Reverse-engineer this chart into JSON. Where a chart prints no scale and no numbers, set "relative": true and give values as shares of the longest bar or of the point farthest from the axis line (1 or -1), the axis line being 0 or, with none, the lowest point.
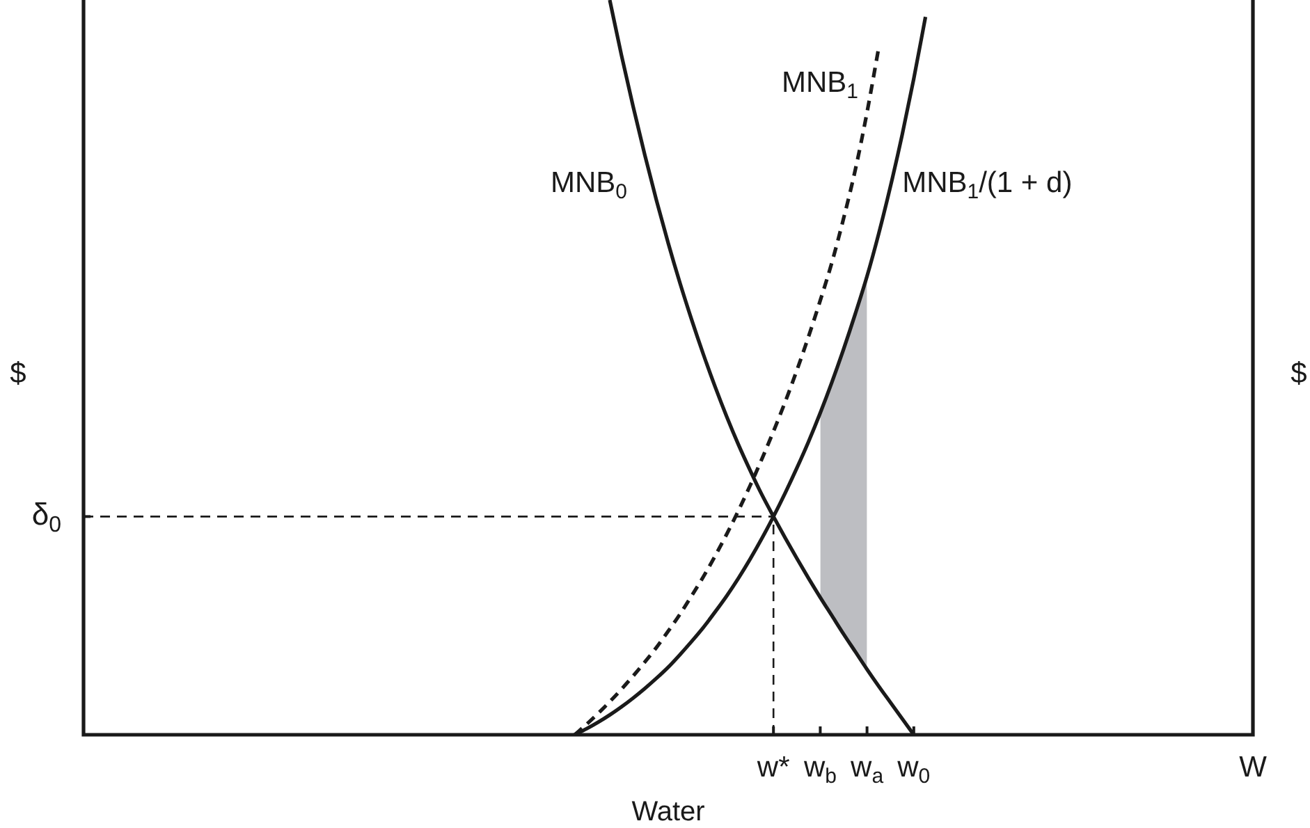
{
  "chart_data": {
    "type": "line",
    "relative": true,
    "xlabel": "Water",
    "ylabel": "$",
    "y2label": "$",
    "legend": false,
    "marker": "none",
    "categories": [
      null,
      null,
      null,
      null,
      null,
      null,
      null,
      null,
      null,
      null,
      null,
      null,
      null,
      null,
      null,
      null,
      null,
      null,
      null,
      null,
      null,
      null,
      null,
      null,
      null,
      null,
      null,
      null,
      null,
      null,
      null,
      null,
      null,
      null,
      null,
      null,
      null,
      null,
      null,
      null,
      null,
      null,
      null,
      null,
      null,
      null,
      null,
      null,
      null,
      null,
      null,
      null,
      null,
      null,
      null,
      null,
      null,
      null,
      null,
      "w*",
      null,
      null,
      null,
      "w$_{b}$",
      null,
      null,
      null,
      "w$_{a}$",
      null,
      null,
      null,
      "w$_{0}$",
      null,
      null,
      null,
      null,
      null,
      null,
      null,
      null,
      null,
      null,
      null,
      null,
      null,
      null,
      null,
      null,
      null,
      null,
      null,
      null,
      null,
      null,
      null,
      null,
      null,
      null,
      null,
      null,
      "W"
    ],
    "series": [
      {
        "type": "area",
        "color": "#bdbec2",
        "values": [
          null,
          null,
          null,
          null,
          null,
          null,
          null,
          null,
          null,
          null,
          null,
          null,
          null,
          null,
          null,
          null,
          null,
          null,
          null,
          null,
          null,
          null,
          null,
          null,
          null,
          null,
          null,
          null,
          null,
          null,
          null,
          null,
          null,
          null,
          null,
          null,
          null,
          null,
          null,
          null,
          null,
          null,
          null,
          null,
          null,
          null,
          null,
          null,
          null,
          null,
          null,
          null,
          null,
          null,
          null,
          null,
          null,
          null,
          null,
          null,
          null,
          null,
          null,
          0.438,
          0.48,
          0.525,
          0.573,
          0.624,
          null,
          null,
          null,
          null,
          null,
          null,
          null,
          null,
          null,
          null,
          null,
          null,
          null,
          null,
          null,
          null,
          null,
          null,
          null,
          null,
          null,
          null,
          null,
          null,
          null,
          null,
          null,
          null,
          null,
          null,
          null,
          null,
          null
        ]
      },
      {
        "name": "MNB$_{0}$",
        "color": "#1a1a1a",
        "values": [
          null,
          null,
          null,
          null,
          null,
          null,
          null,
          null,
          null,
          null,
          null,
          null,
          null,
          null,
          null,
          null,
          null,
          null,
          null,
          null,
          null,
          null,
          null,
          null,
          null,
          null,
          null,
          null,
          null,
          null,
          null,
          null,
          null,
          null,
          null,
          null,
          null,
          null,
          null,
          null,
          null,
          null,
          null,
          null,
          null,
          1.0,
          0.925,
          0.855,
          0.789,
          0.727,
          0.669,
          0.615,
          0.565,
          0.518,
          0.474,
          0.433,
          0.395,
          0.36,
          0.327,
          0.297,
          0.268,
          0.24,
          0.213,
          0.187,
          0.162,
          0.137,
          0.113,
          0.089,
          0.066,
          0.044,
          0.022,
          0,
          null,
          null,
          null,
          null,
          null,
          null,
          null,
          null,
          null,
          null,
          null,
          null,
          null,
          null,
          null,
          null,
          null,
          null,
          null,
          null,
          null,
          null,
          null,
          null,
          null,
          null,
          null,
          null,
          null
        ]
      },
      {
        "name": "MNB$_{1}$",
        "color": "#1a1a1a",
        "line_style": "dashed",
        "values": [
          null,
          null,
          null,
          null,
          null,
          null,
          null,
          null,
          null,
          null,
          null,
          null,
          null,
          null,
          null,
          null,
          null,
          null,
          null,
          null,
          null,
          null,
          null,
          null,
          null,
          null,
          null,
          null,
          null,
          null,
          null,
          null,
          null,
          null,
          null,
          null,
          null,
          null,
          null,
          null,
          null,
          null,
          0,
          0.014,
          0.029,
          0.045,
          0.062,
          0.08,
          0.099,
          0.119,
          0.141,
          0.164,
          0.189,
          0.215,
          0.243,
          0.273,
          0.305,
          0.339,
          0.375,
          0.413,
          0.453,
          0.496,
          0.542,
          0.591,
          0.643,
          0.703,
          0.769,
          0.847,
          0.935,
          null,
          null,
          null,
          null,
          null,
          null,
          null,
          null,
          null,
          null,
          null,
          null,
          null,
          null,
          null,
          null,
          null,
          null,
          null,
          null,
          null,
          null,
          null,
          null,
          null,
          null,
          null,
          null,
          null,
          null,
          null,
          null
        ]
      },
      {
        "name": "MNB$_{1}$/(1 + d)",
        "color": "#1a1a1a",
        "values": [
          null,
          null,
          null,
          null,
          null,
          null,
          null,
          null,
          null,
          null,
          null,
          null,
          null,
          null,
          null,
          null,
          null,
          null,
          null,
          null,
          null,
          null,
          null,
          null,
          null,
          null,
          null,
          null,
          null,
          null,
          null,
          null,
          null,
          null,
          null,
          null,
          null,
          null,
          null,
          null,
          null,
          null,
          0,
          0.008,
          0.017,
          0.027,
          0.038,
          0.05,
          0.063,
          0.077,
          0.092,
          0.109,
          0.127,
          0.146,
          0.167,
          0.189,
          0.213,
          0.239,
          0.267,
          0.297,
          0.329,
          0.363,
          0.399,
          0.438,
          0.48,
          0.525,
          0.573,
          0.624,
          0.682,
          0.746,
          0.816,
          0.893,
          0.977,
          null,
          null,
          null,
          null,
          null,
          null,
          null,
          null,
          null,
          null,
          null,
          null,
          null,
          null,
          null,
          null,
          null,
          null,
          null,
          null,
          null,
          null,
          null,
          null,
          null,
          null,
          null,
          null
        ]
      }
    ],
    "ref_lines": [
      {
        "axis": "y",
        "value": 0.297,
        "label": "δ$_{0}$",
        "line_style": "dashed",
        "color": "#1a1a1a"
      },
      {
        "axis": "x",
        "value": "w*",
        "line_style": "dashed",
        "color": "#1a1a1a"
      }
    ]
  }
}
